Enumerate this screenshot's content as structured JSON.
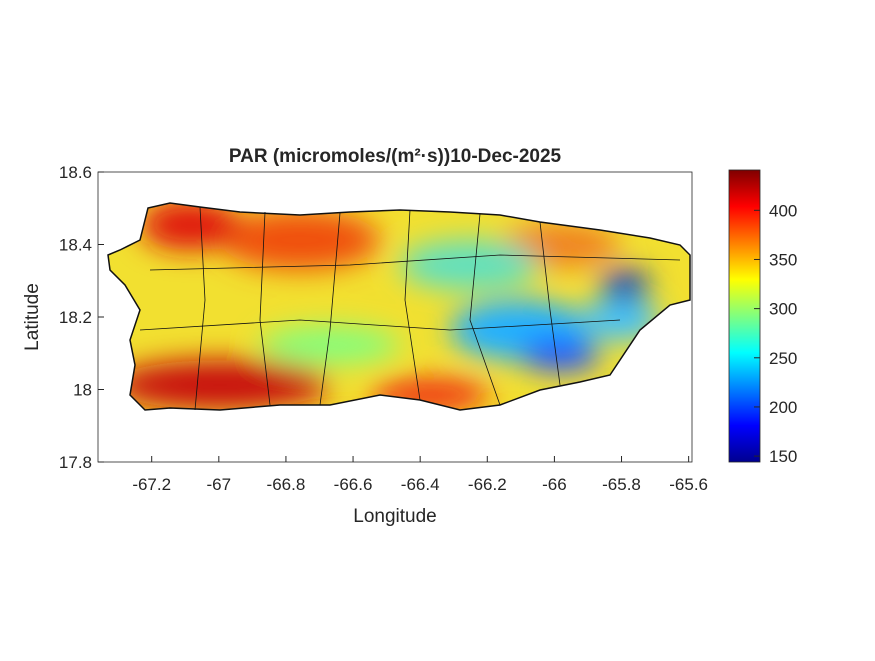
{
  "chart_data": {
    "type": "map",
    "title": "PAR (micromoles/(m²·s))10-Dec-2025",
    "x_label": "Longitude",
    "y_label": "Latitude",
    "xlim": [
      -67.36,
      -65.59
    ],
    "xticks": [
      -67.2,
      -67,
      -66.8,
      -66.6,
      -66.4,
      -66.2,
      -66,
      -65.8,
      -65.6
    ],
    "ylim": [
      17.8,
      18.6
    ],
    "yticks": [
      17.8,
      18,
      18.2,
      18.4,
      18.6
    ],
    "colorbar": {
      "colormap": "jet",
      "clim": [
        144,
        441
      ],
      "ticks": [
        150,
        200,
        250,
        300,
        350,
        400
      ]
    }
  }
}
